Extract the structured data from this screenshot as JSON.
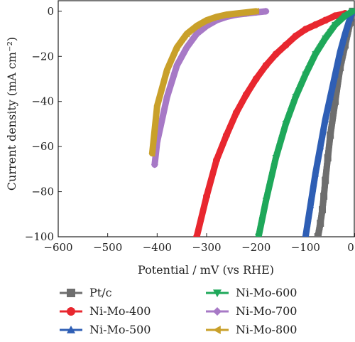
{
  "chart_data": {
    "type": "line",
    "xlabel": "Potential / mV (vs RHE)",
    "ylabel": "Current density (mA cm⁻²)",
    "xlim": [
      -600,
      0
    ],
    "ylim": [
      -100,
      5
    ],
    "xticks": [
      -600,
      -500,
      -400,
      -300,
      -200,
      -100,
      0
    ],
    "xtick_labels": [
      "−600",
      "−500",
      "−400",
      "−300",
      "−200",
      "−100",
      "0"
    ],
    "yticks": [
      -100,
      -80,
      -60,
      -40,
      -20,
      0
    ],
    "ytick_labels": [
      "−100",
      "−80",
      "−60",
      "−40",
      "−20",
      "0"
    ],
    "grid": false,
    "legend_position": "below",
    "series": [
      {
        "name": "Pt/c",
        "color": "#6e6e6e",
        "marker": "square",
        "x": [
          -5,
          -10,
          -20,
          -30,
          -40,
          -50,
          -55,
          -60,
          -63,
          -66,
          -70,
          -75
        ],
        "y": [
          0,
          -5,
          -15,
          -25,
          -40,
          -55,
          -65,
          -75,
          -82,
          -88,
          -94,
          -100
        ]
      },
      {
        "name": "Ni-Mo-400",
        "color": "#e8272f",
        "marker": "circle",
        "x": [
          -20,
          -40,
          -60,
          -80,
          -100,
          -120,
          -140,
          -160,
          -180,
          -200,
          -220,
          -240,
          -260,
          -280,
          -300,
          -320
        ],
        "y": [
          -1,
          -2,
          -4,
          -6,
          -8,
          -11,
          -15,
          -19,
          -24,
          -30,
          -37,
          -45,
          -55,
          -66,
          -82,
          -100
        ]
      },
      {
        "name": "Ni-Mo-500",
        "color": "#2f5fb5",
        "marker": "triangle-up",
        "x": [
          -5,
          -10,
          -20,
          -30,
          -40,
          -50,
          -60,
          -70,
          -80,
          -90,
          -100
        ],
        "y": [
          0,
          -3,
          -10,
          -18,
          -28,
          -38,
          -48,
          -60,
          -72,
          -86,
          -100
        ]
      },
      {
        "name": "Ni-Mo-600",
        "color": "#1fa85a",
        "marker": "triangle-down",
        "x": [
          -5,
          -20,
          -40,
          -60,
          -80,
          -100,
          -120,
          -140,
          -160,
          -180,
          -195
        ],
        "y": [
          0,
          -2,
          -6,
          -12,
          -19,
          -28,
          -38,
          -50,
          -65,
          -84,
          -100
        ]
      },
      {
        "name": "Ni-Mo-700",
        "color": "#a779c6",
        "marker": "diamond",
        "x": [
          -180,
          -200,
          -220,
          -240,
          -260,
          -280,
          -300,
          -320,
          -340,
          -360,
          -380,
          -400,
          -405
        ],
        "y": [
          0,
          -0.5,
          -1,
          -1.5,
          -2.5,
          -4,
          -6.5,
          -10,
          -16,
          -24,
          -38,
          -58,
          -68
        ]
      },
      {
        "name": "Ni-Mo-800",
        "color": "#c9a02a",
        "marker": "triangle-left",
        "x": [
          -200,
          -220,
          -240,
          -260,
          -280,
          -300,
          -320,
          -340,
          -360,
          -380,
          -400,
          -410
        ],
        "y": [
          0,
          -0.5,
          -1,
          -1.5,
          -2.5,
          -4,
          -6.5,
          -10,
          -16,
          -26,
          -42,
          -63
        ]
      }
    ]
  }
}
